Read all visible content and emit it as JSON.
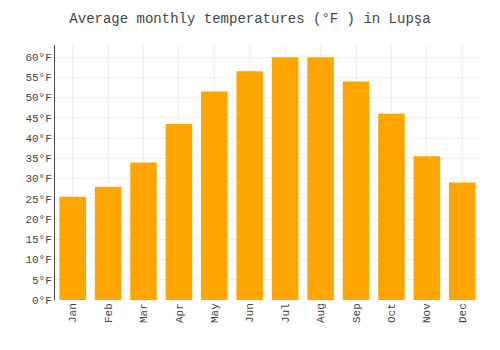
{
  "chart_data": {
    "type": "bar",
    "title": "Average monthly temperatures (°F ) in Lupşa",
    "categories": [
      "Jan",
      "Feb",
      "Mar",
      "Apr",
      "May",
      "Jun",
      "Jul",
      "Aug",
      "Sep",
      "Oct",
      "Nov",
      "Dec"
    ],
    "values": [
      25.5,
      28.0,
      34.0,
      43.5,
      51.5,
      56.5,
      60.0,
      60.0,
      54.0,
      46.0,
      35.5,
      29.0
    ],
    "color": "#FFA500",
    "ylim": [
      0,
      63
    ],
    "yticks": [
      {
        "value": 0,
        "label": "0°F"
      },
      {
        "value": 5,
        "label": "5°F"
      },
      {
        "value": 10,
        "label": "10°F"
      },
      {
        "value": 15,
        "label": "15°F"
      },
      {
        "value": 20,
        "label": "20°F"
      },
      {
        "value": 25,
        "label": "25°F"
      },
      {
        "value": 30,
        "label": "30°F"
      },
      {
        "value": 35,
        "label": "35°F"
      },
      {
        "value": 40,
        "label": "40°F"
      },
      {
        "value": 45,
        "label": "45°F"
      },
      {
        "value": 50,
        "label": "50°F"
      },
      {
        "value": 55,
        "label": "55°F"
      },
      {
        "value": 60,
        "label": "60°F"
      }
    ],
    "grid": true
  }
}
